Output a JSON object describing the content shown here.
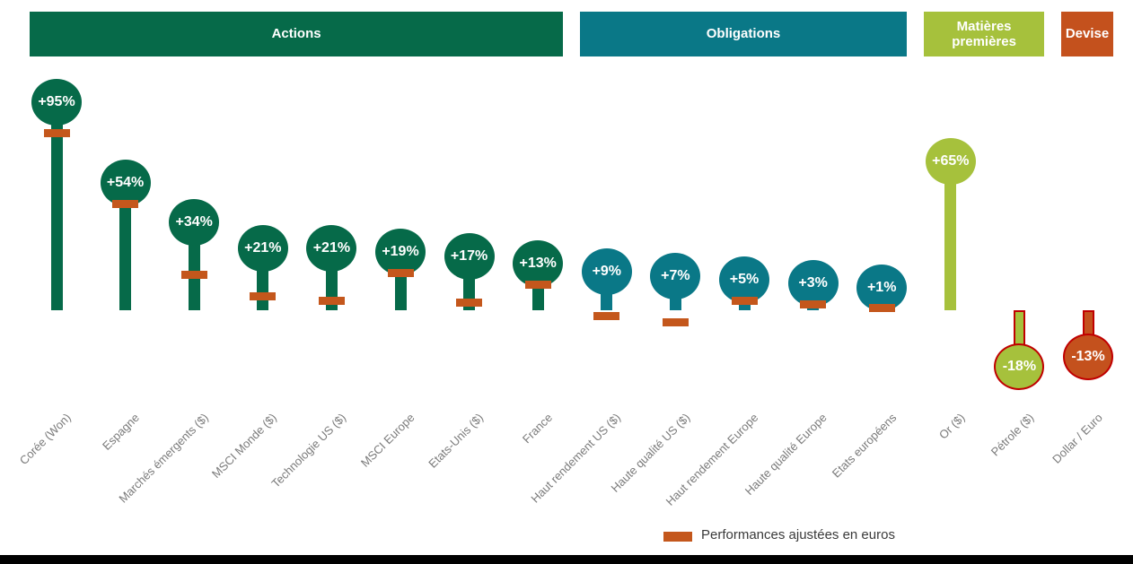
{
  "palette": {
    "green": {
      "fill": "#066A49"
    },
    "teal": {
      "fill": "#0A7887"
    },
    "lime": {
      "fill": "#A6C13C"
    },
    "orange": {
      "fill": "#C4511D"
    },
    "tick_color": "#C4571C",
    "negative_border": "#C00000",
    "header_text": "#ffffff",
    "axis_label_color": "#7b7b7b"
  },
  "legend": {
    "label": "Performances ajustées en euros",
    "swatch_color": "#C4571C"
  },
  "chart_data": {
    "type": "lollipop",
    "unit": "%",
    "baseline_value": 0,
    "grid": false,
    "legend_position": "bottom",
    "groups": [
      {
        "label": "Actions",
        "style": "green",
        "items": [
          {
            "label": "Corée (Won)",
            "value": 95,
            "value_label": "+95%",
            "adjusted_value": 90
          },
          {
            "label": "Espagne",
            "value": 54,
            "value_label": "+54%",
            "adjusted_value": 54
          },
          {
            "label": "Marchés émergents ($)",
            "value": 34,
            "value_label": "+34%",
            "adjusted_value": 18
          },
          {
            "label": "MSCI Monde ($)",
            "value": 21,
            "value_label": "+21%",
            "adjusted_value": 7
          },
          {
            "label": "Technologie US ($)",
            "value": 21,
            "value_label": "+21%",
            "adjusted_value": 5
          },
          {
            "label": "MSCI Europe",
            "value": 19,
            "value_label": "+19%",
            "adjusted_value": 19
          },
          {
            "label": "Etats-Unis ($)",
            "value": 17,
            "value_label": "+17%",
            "adjusted_value": 4
          },
          {
            "label": "France",
            "value": 13,
            "value_label": "+13%",
            "adjusted_value": 13
          }
        ]
      },
      {
        "label": "Obligations",
        "style": "teal",
        "items": [
          {
            "label": "Haut rendement US ($)",
            "value": 9,
            "value_label": "+9%",
            "adjusted_value": -3
          },
          {
            "label": "Haute qualité US ($)",
            "value": 7,
            "value_label": "+7%",
            "adjusted_value": -6
          },
          {
            "label": "Haut rendement Europe",
            "value": 5,
            "value_label": "+5%",
            "adjusted_value": 5
          },
          {
            "label": "Haute qualité Europe",
            "value": 3,
            "value_label": "+3%",
            "adjusted_value": 3
          },
          {
            "label": "Etats européens",
            "value": 1,
            "value_label": "+1%",
            "adjusted_value": 1
          }
        ]
      },
      {
        "label": "Matières premières",
        "style": "lime",
        "items": [
          {
            "label": "Or ($)",
            "value": 65,
            "value_label": "+65%",
            "adjusted_value": null
          },
          {
            "label": "Pétrole ($)",
            "value": -18,
            "value_label": "-18%",
            "adjusted_value": null,
            "negative_outline": true
          }
        ]
      },
      {
        "label": "Devise",
        "style": "orange",
        "items": [
          {
            "label": "Dollar / Euro",
            "value": -13,
            "value_label": "-13%",
            "adjusted_value": null,
            "negative_outline": true
          }
        ]
      }
    ]
  }
}
